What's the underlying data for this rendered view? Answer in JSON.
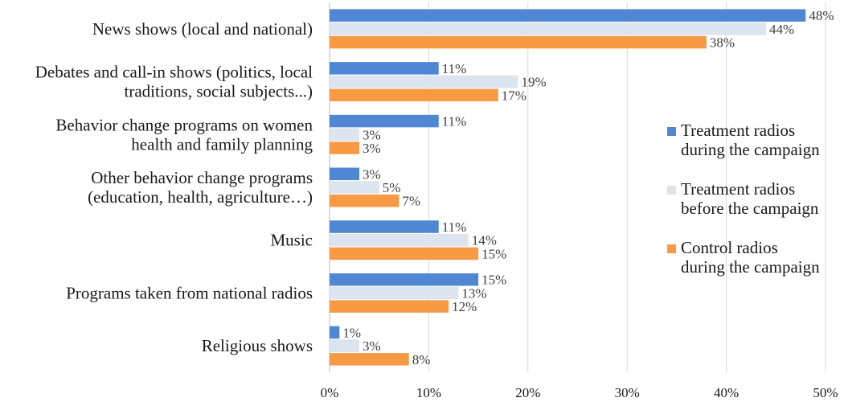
{
  "chart_data": {
    "type": "bar",
    "orientation": "horizontal",
    "categories": [
      [
        "News shows (local and national)"
      ],
      [
        "Debates and call-in shows (politics, local",
        "traditions, social subjects...)"
      ],
      [
        "Behavior change programs on women",
        "health and family planning"
      ],
      [
        "Other behavior change programs",
        "(education, health, agriculture…)"
      ],
      [
        "Music"
      ],
      [
        "Programs taken from national radios"
      ],
      [
        "Religious shows"
      ]
    ],
    "series": [
      {
        "name": "Treatment radios during the campaign",
        "legend_lines": [
          "Treatment radios",
          "during the campaign"
        ],
        "color": "#4f87d3",
        "values": [
          48,
          11,
          11,
          3,
          11,
          15,
          1
        ]
      },
      {
        "name": "Treatment radios before the campaign",
        "legend_lines": [
          "Treatment radios",
          "before the campaign"
        ],
        "color": "#dce4f0",
        "values": [
          44,
          19,
          3,
          5,
          14,
          13,
          3
        ]
      },
      {
        "name": "Control radios during the campaign",
        "legend_lines": [
          "Control radios",
          "during the campaign"
        ],
        "color": "#f79a43",
        "values": [
          38,
          17,
          3,
          7,
          15,
          12,
          8
        ]
      }
    ],
    "value_suffix": "%",
    "xlim": [
      0,
      50
    ],
    "xticks": [
      0,
      10,
      20,
      30,
      40,
      50
    ],
    "grid": true,
    "legend_position": "right",
    "title": "",
    "xlabel": "",
    "ylabel": ""
  }
}
